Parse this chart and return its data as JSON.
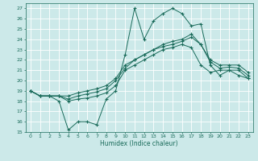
{
  "xlabel": "Humidex (Indice chaleur)",
  "bg_color": "#cce9e9",
  "grid_color": "#ffffff",
  "line_color": "#1a6b5a",
  "xlim": [
    -0.5,
    23.5
  ],
  "ylim": [
    15,
    27.5
  ],
  "yticks": [
    15,
    16,
    17,
    18,
    19,
    20,
    21,
    22,
    23,
    24,
    25,
    26,
    27
  ],
  "xticks": [
    0,
    1,
    2,
    3,
    4,
    5,
    6,
    7,
    8,
    9,
    10,
    11,
    12,
    13,
    14,
    15,
    16,
    17,
    18,
    19,
    20,
    21,
    22,
    23
  ],
  "series1": [
    19.0,
    18.5,
    18.5,
    18.0,
    15.2,
    16.0,
    16.0,
    15.7,
    18.2,
    19.0,
    22.5,
    27.0,
    24.0,
    25.8,
    26.5,
    27.0,
    26.5,
    25.3,
    25.5,
    21.5,
    20.5,
    21.0,
    21.0,
    20.2
  ],
  "series2": [
    19.0,
    18.5,
    18.5,
    18.5,
    18.0,
    18.2,
    18.3,
    18.5,
    18.8,
    19.5,
    21.0,
    21.5,
    22.0,
    22.5,
    23.0,
    23.2,
    23.5,
    23.2,
    21.5,
    20.8,
    21.0,
    21.0,
    20.5,
    20.2
  ],
  "series3": [
    19.0,
    18.5,
    18.5,
    18.5,
    18.2,
    18.5,
    18.7,
    18.9,
    19.2,
    20.0,
    21.2,
    22.0,
    22.5,
    23.0,
    23.3,
    23.5,
    23.8,
    24.2,
    23.5,
    21.8,
    21.2,
    21.3,
    21.2,
    20.5
  ],
  "series4": [
    19.0,
    18.5,
    18.5,
    18.5,
    18.5,
    18.8,
    19.0,
    19.2,
    19.5,
    20.2,
    21.5,
    22.0,
    22.5,
    23.0,
    23.5,
    23.8,
    24.0,
    24.5,
    23.5,
    22.0,
    21.5,
    21.5,
    21.5,
    20.8
  ]
}
